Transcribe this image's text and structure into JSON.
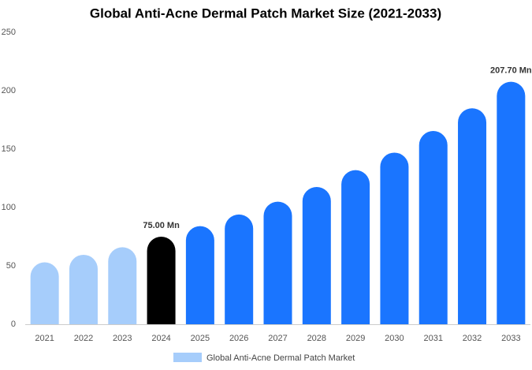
{
  "chart_data": {
    "type": "bar",
    "title": "Global Anti-Acne Dermal Patch Market Size (2021-2033)",
    "categories": [
      "2021",
      "2022",
      "2023",
      "2024",
      "2025",
      "2026",
      "2027",
      "2028",
      "2029",
      "2030",
      "2031",
      "2032",
      "2033"
    ],
    "series": [
      {
        "name": "Global Anti-Acne Dermal Patch Market",
        "color": "#a6cdfb",
        "values": [
          53,
          59.5,
          66,
          75,
          84,
          94,
          105,
          117.6,
          132,
          147,
          165.5,
          185,
          207.7
        ],
        "value_labels": [
          null,
          null,
          null,
          "75.00 Mn",
          null,
          null,
          null,
          null,
          null,
          null,
          null,
          null,
          "207.70 Mn"
        ],
        "colors": [
          "#a6cdfb",
          "#a6cdfb",
          "#a6cdfb",
          "#000000",
          "#1a75ff",
          "#1a75ff",
          "#1a75ff",
          "#1a75ff",
          "#1a75ff",
          "#1a75ff",
          "#1a75ff",
          "#1a75ff",
          "#1a75ff"
        ]
      }
    ],
    "ylim": [
      0,
      250
    ],
    "yticks": [
      0,
      50,
      100,
      150,
      200,
      250
    ],
    "grid": false,
    "legend": "bottom"
  }
}
